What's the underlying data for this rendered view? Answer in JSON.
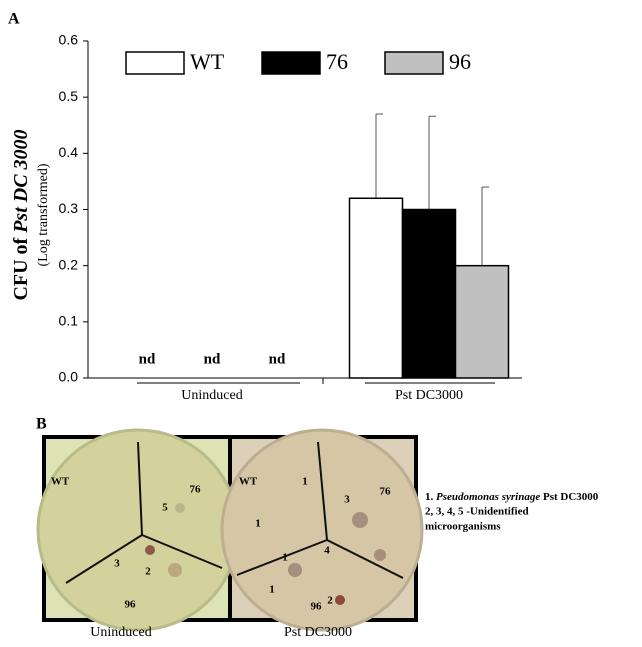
{
  "chart_data": {
    "type": "bar",
    "panel_label": "A",
    "y_label": {
      "prefix": "CFU of ",
      "italic": "Pst DC 3000"
    },
    "y_sublabel": "(Log transformed)",
    "categories": [
      "Uninduced",
      "Pst DC3000"
    ],
    "series": [
      {
        "name": "WT",
        "color": "#ffffff",
        "values": [
          null,
          0.32
        ],
        "errors": [
          null,
          0.15
        ],
        "value_labels": [
          "nd",
          null
        ]
      },
      {
        "name": "76",
        "color": "#000000",
        "values": [
          null,
          0.3
        ],
        "errors": [
          null,
          0.166
        ],
        "value_labels": [
          "nd",
          null
        ]
      },
      {
        "name": "96",
        "color": "#c0c0c0",
        "values": [
          null,
          0.2
        ],
        "errors": [
          null,
          0.14
        ],
        "value_labels": [
          "nd",
          null
        ]
      }
    ],
    "ylim": [
      0,
      0.6
    ],
    "yticks": [
      {
        "value": 0,
        "label": "0.0"
      },
      0.1,
      0.2,
      0.3,
      0.4,
      0.5,
      0.6
    ],
    "grid": false,
    "legend": "top"
  },
  "panel_b": {
    "label": "B",
    "plates": [
      {
        "caption": "Uninduced",
        "labels": [
          "WT",
          "76",
          "5",
          "3",
          "2",
          "96"
        ]
      },
      {
        "caption": "Pst DC3000",
        "labels": [
          "WT",
          "76",
          "3",
          "1",
          "1",
          "1",
          "1",
          "4",
          "2",
          "96"
        ]
      }
    ],
    "legend": {
      "line1_prefix": "1. ",
      "line1_italic": "Pseudomonas syrinage",
      "line1_suffix": " Pst DC3000",
      "line2": "2, 3, 4, 5 -Unidentified",
      "line3": "microorganisms"
    }
  }
}
